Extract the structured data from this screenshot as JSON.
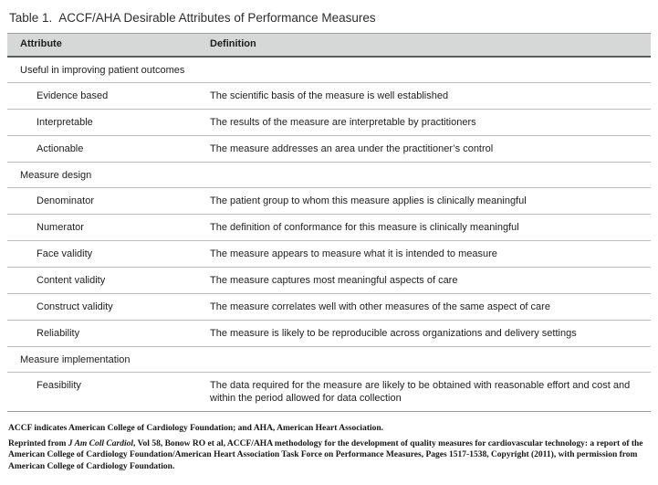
{
  "title": {
    "label": "Table 1.",
    "text": "ACCF/AHA Desirable Attributes of Performance Measures"
  },
  "table": {
    "headers": [
      "Attribute",
      "Definition"
    ],
    "sections": [
      {
        "label": "Useful in improving patient outcomes",
        "rows": [
          {
            "attribute": "Evidence based",
            "definition": "The scientific basis of the measure is well established"
          },
          {
            "attribute": "Interpretable",
            "definition": "The results of the measure are interpretable by practitioners"
          },
          {
            "attribute": "Actionable",
            "definition": "The measure addresses an area under the practitioner’s control"
          }
        ]
      },
      {
        "label": "Measure design",
        "rows": [
          {
            "attribute": "Denominator",
            "definition": "The patient group to whom this measure applies is clinically meaningful"
          },
          {
            "attribute": "Numerator",
            "definition": "The definition of conformance for this measure is clinically meaningful"
          },
          {
            "attribute": "Face validity",
            "definition": "The measure appears to measure what it is intended to measure"
          },
          {
            "attribute": "Content validity",
            "definition": "The measure captures most meaningful aspects of care"
          },
          {
            "attribute": "Construct validity",
            "definition": "The measure correlates well with other measures of the same aspect of care"
          },
          {
            "attribute": "Reliability",
            "definition": "The measure is likely to be reproducible across organizations and delivery settings"
          }
        ]
      },
      {
        "label": "Measure implementation",
        "rows": [
          {
            "attribute": "Feasibility",
            "definition": "The data required for the measure are likely to be obtained with reasonable effort and cost and within the period allowed for data collection"
          }
        ]
      }
    ]
  },
  "footnotes": {
    "abbreviations": "ACCF indicates American College of Cardiology Foundation; and AHA, American Heart Association.",
    "reprint_prefix": "Reprinted from ",
    "reprint_journal": "J Am Coll Cardiol",
    "reprint_suffix": ", Vol 58, Bonow RO et al, ACCF/AHA methodology for the development of quality measures for cardiovascular technology: a report of the American College of Cardiology Foundation/American Heart Association Task Force on Performance Measures, Pages 1517-1538, Copyright (2011), with permission from American College of Cardiology Foundation."
  },
  "colors": {
    "header_bg": "#d6d7d7",
    "row_divider": "#bcbebe",
    "header_border_dark": "#595b5b",
    "table_top_border": "#9b9d9d",
    "text": "#212121"
  }
}
